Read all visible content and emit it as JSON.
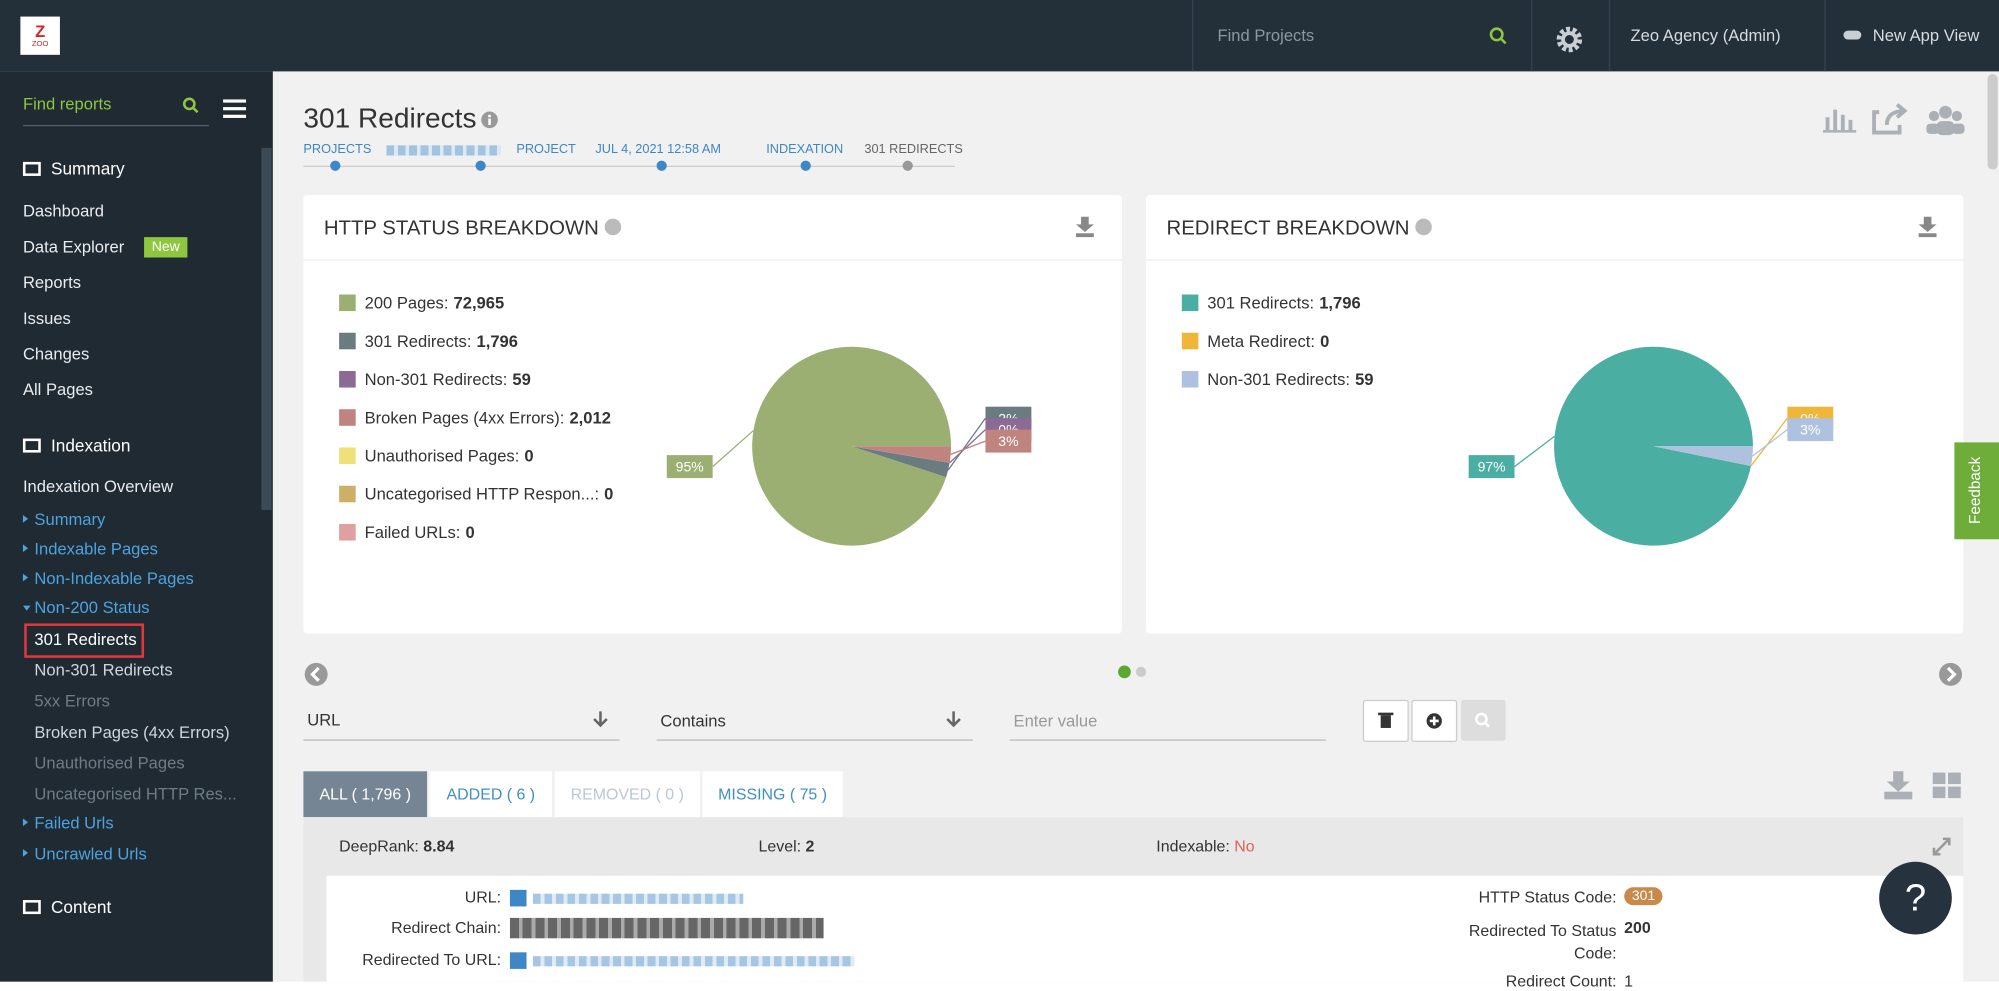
{
  "topbar": {
    "logo": "ZOO",
    "search_placeholder": "Find Projects",
    "account": "Zeo Agency (Admin)",
    "new_app_view": "New App View"
  },
  "sidebar": {
    "search_placeholder": "Find reports",
    "badge": "New",
    "items": [
      "Summary",
      "Dashboard",
      "Data Explorer",
      "Reports",
      "Issues",
      "Changes",
      "All Pages",
      "Indexation",
      "Indexation Overview",
      "Summary",
      "Indexable Pages",
      "Non-Indexable Pages",
      "Non-200 Status",
      "301 Redirects",
      "Non-301 Redirects",
      "5xx Errors",
      "Broken Pages (4xx Errors)",
      "Unauthorised Pages",
      "Uncategorised HTTP Res...",
      "Failed Urls",
      "Uncrawled Urls",
      "Content"
    ]
  },
  "header": {
    "title": "301 Redirects",
    "breadcrumb": [
      "PROJECTS",
      "PROJECT",
      "JUL 4, 2021 12:58 AM",
      "INDEXATION",
      "301 REDIRECTS"
    ]
  },
  "chart_data": [
    {
      "type": "pie",
      "title": "HTTP STATUS BREAKDOWN",
      "label_separator": ":",
      "categories": [
        "200 Pages",
        "301 Redirects",
        "Non-301 Redirects",
        "Broken Pages (4xx Errors)",
        "Unauthorised Pages",
        "Uncategorised HTTP Respon...",
        "Failed URLs"
      ],
      "values": [
        72965,
        1796,
        59,
        2012,
        0,
        0,
        0
      ],
      "value_labels": [
        "72,965",
        "1,796",
        "59",
        "2,012",
        "0",
        "0",
        "0"
      ],
      "slice_labels": [
        "95%",
        "2%",
        "0%",
        "3%",
        null,
        null,
        null
      ],
      "colors": [
        "#9caf72",
        "#6b7c80",
        "#8c6a96",
        "#c0847f",
        "#efe07a",
        "#cdb066",
        "#e0a0a0"
      ]
    },
    {
      "type": "pie",
      "title": "REDIRECT BREAKDOWN",
      "label_separator": ":",
      "categories": [
        "301 Redirects",
        "Meta Redirect",
        "Non-301 Redirects"
      ],
      "values": [
        1796,
        0,
        59
      ],
      "value_labels": [
        "1,796",
        "0",
        "59"
      ],
      "slice_labels": [
        "97%",
        "0%",
        "3%"
      ],
      "colors": [
        "#4aaea2",
        "#f0b63a",
        "#aec2e0"
      ]
    }
  ],
  "filter": {
    "field": "URL",
    "operator": "Contains",
    "value_placeholder": "Enter value"
  },
  "tabs": [
    "ALL ( 1,796 )",
    "ADDED ( 6 )",
    "REMOVED ( 0 )",
    "MISSING ( 75 )"
  ],
  "summary_row": {
    "deeprank_label": "DeepRank:",
    "deeprank": "8.84",
    "level_label": "Level:",
    "level": "2",
    "indexable_label": "Indexable:",
    "indexable": "No"
  },
  "details": {
    "url_label": "URL:",
    "chain_label": "Redirect Chain:",
    "redirected_url_label": "Redirected To URL:",
    "status_label": "HTTP Status Code:",
    "status": "301",
    "redirected_status_label": "Redirected To Status Code:",
    "redirected_status": "200",
    "count_label": "Redirect Count:",
    "count": "1"
  },
  "feedback": "Feedback",
  "help": "?"
}
